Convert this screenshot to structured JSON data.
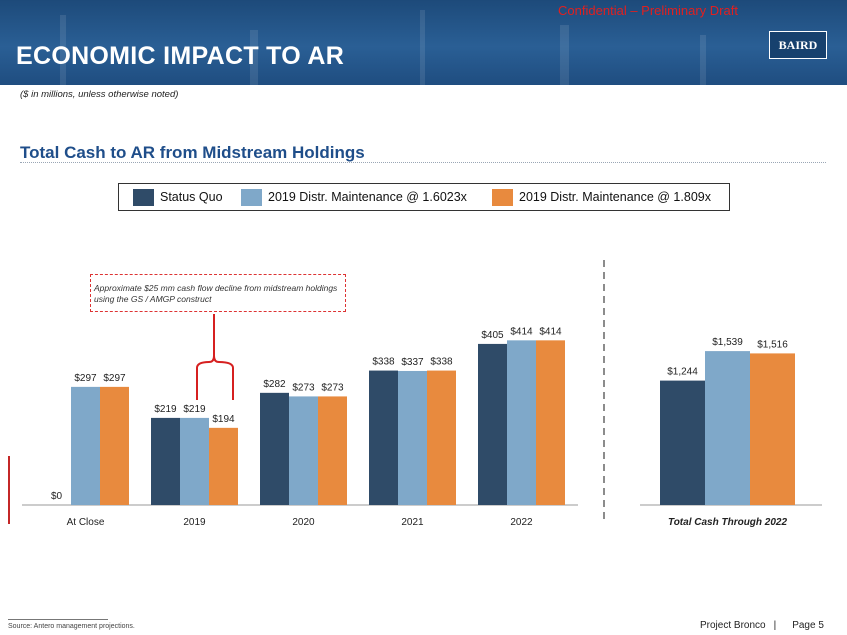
{
  "header": {
    "confidential": "Confidential – Preliminary Draft",
    "title": "ECONOMIC IMPACT TO AR",
    "logo": "BAIRD"
  },
  "subtitle": "($ in millions, unless otherwise noted)",
  "section_title": "Total Cash to AR from Midstream Holdings",
  "legend": {
    "items": [
      {
        "label": "Status Quo",
        "color": "#2f4b68"
      },
      {
        "label": "2019 Distr. Maintenance @ 1.6023x",
        "color": "#7fa8c9"
      },
      {
        "label": "2019 Distr. Maintenance @ 1.809x",
        "color": "#e88a3e"
      }
    ]
  },
  "annotation": "Approximate $25 mm cash flow decline from midstream holdings using the GS / AMGP construct",
  "chart_data": [
    {
      "type": "bar",
      "categories": [
        "At Close",
        "2019",
        "2020",
        "2021",
        "2022"
      ],
      "series": [
        {
          "name": "Status Quo",
          "values": [
            0,
            219,
            282,
            338,
            405
          ],
          "labels": [
            "$0",
            "$219",
            "$282",
            "$338",
            "$405"
          ]
        },
        {
          "name": "2019 Distr. Maintenance @ 1.6023x",
          "values": [
            297,
            219,
            273,
            337,
            414
          ],
          "labels": [
            "$297",
            "$219",
            "$273",
            "$337",
            "$414"
          ]
        },
        {
          "name": "2019 Distr. Maintenance @ 1.809x",
          "values": [
            297,
            194,
            273,
            338,
            414
          ],
          "labels": [
            "$297",
            "$194",
            "$273",
            "$338",
            "$414"
          ]
        }
      ],
      "ylim": [
        0,
        440
      ],
      "grid": false
    },
    {
      "type": "bar",
      "categories": [
        "Total Cash Through 2022"
      ],
      "series": [
        {
          "name": "Status Quo",
          "values": [
            1244
          ],
          "labels": [
            "$1,244"
          ]
        },
        {
          "name": "2019 Distr. Maintenance @ 1.6023x",
          "values": [
            1539
          ],
          "labels": [
            "$1,539"
          ]
        },
        {
          "name": "2019 Distr. Maintenance @ 1.809x",
          "values": [
            1516
          ],
          "labels": [
            "$1,516"
          ]
        }
      ],
      "ylim": [
        0,
        1600
      ],
      "grid": false
    }
  ],
  "footer": {
    "source": "Source: Antero management projections.",
    "project": "Project Bronco",
    "separator": "|",
    "page": "Page 5"
  }
}
